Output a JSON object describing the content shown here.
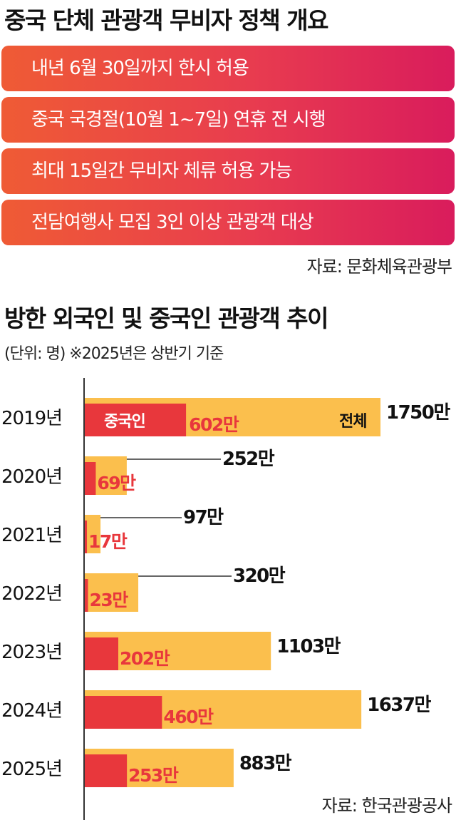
{
  "policy_section": {
    "title": "중국 단체 관광객 무비자 정책 개요",
    "items": [
      "내년 6월 30일까지 한시 허용",
      "중국 국경절(10월 1~7일) 연휴 전 시행",
      "최대 15일간 무비자 체류 허용 가능",
      "전담여행사 모집 3인 이상 관광객 대상"
    ],
    "source": "자료: 문화체육관광부"
  },
  "chart_section": {
    "title": "방한 외국인 및 중국인 관광객 추이",
    "unit_note": "(단위: 명)   ※2025년은 상반기 기준",
    "source": "자료: 한국관광공사"
  },
  "chart_data": {
    "type": "bar",
    "orientation": "horizontal",
    "categories": [
      "2019년",
      "2020년",
      "2021년",
      "2022년",
      "2023년",
      "2024년",
      "2025년"
    ],
    "series": [
      {
        "name": "전체",
        "values": [
          1750,
          252,
          97,
          320,
          1103,
          1637,
          883
        ],
        "labels": [
          "1750만",
          "252만",
          "97만",
          "320만",
          "1103만",
          "1637만",
          "883만"
        ],
        "color": "#fbbf4d"
      },
      {
        "name": "중국인",
        "values": [
          602,
          69,
          17,
          23,
          202,
          460,
          253
        ],
        "labels": [
          "602만",
          "69만",
          "17만",
          "23만",
          "202만",
          "460만",
          "253만"
        ],
        "color": "#e8373c"
      }
    ],
    "value_unit": "만 명",
    "label_color_china": "#e8373c",
    "label_color_total": "#111111"
  }
}
